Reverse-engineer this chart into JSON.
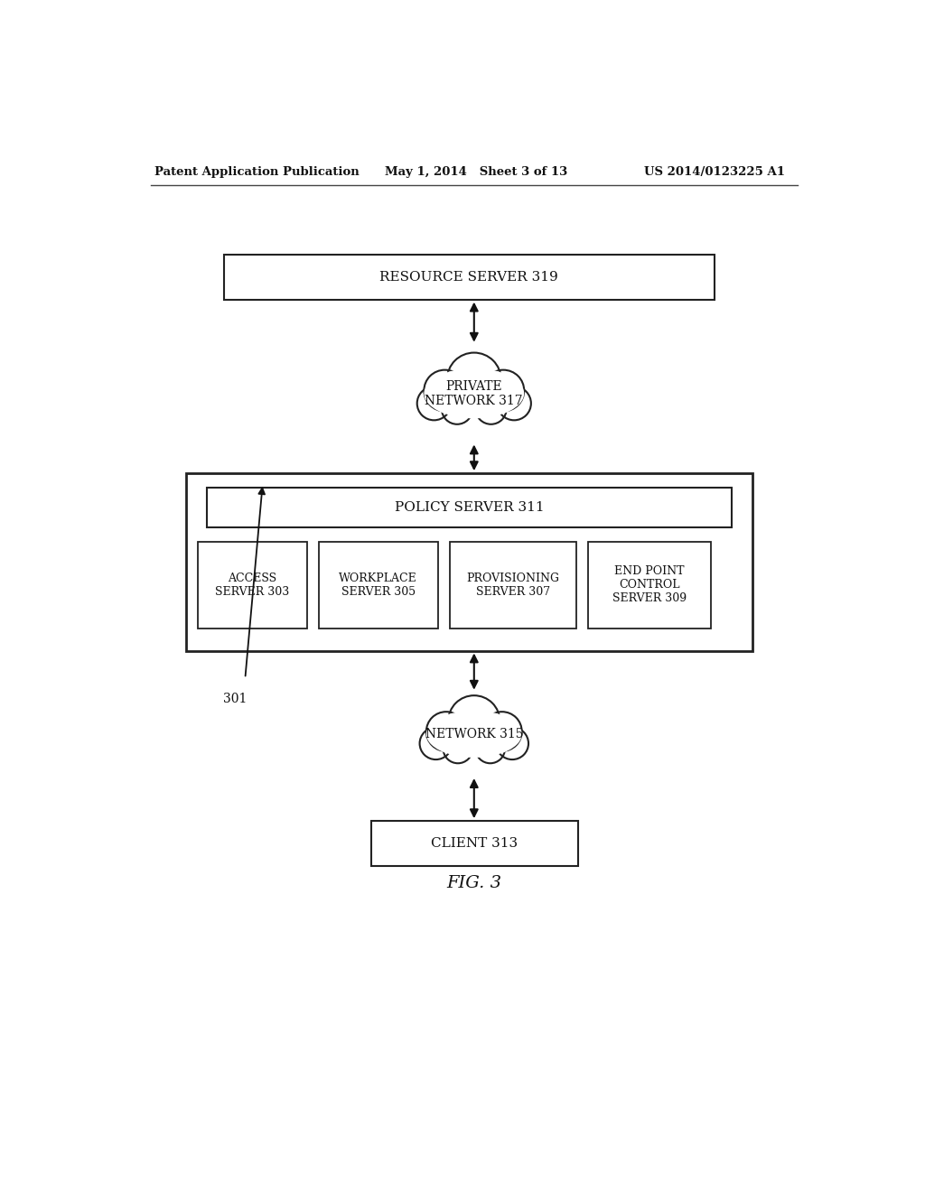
{
  "bg_color": "#ffffff",
  "header_left": "Patent Application Publication",
  "header_mid": "May 1, 2014   Sheet 3 of 13",
  "header_right": "US 2014/0123225 A1",
  "fig_label": "FIG. 3",
  "resource_server_label": "RESOURCE SERVER 319",
  "private_network_label": "PRIVATE\nNETWORK 317",
  "policy_server_label": "POLICY SERVER 311",
  "access_server_label": "ACCESS\nSERVER 303",
  "workplace_server_label": "WORKPLACE\nSERVER 305",
  "provisioning_server_label": "PROVISIONING\nSERVER 307",
  "endpoint_server_label": "END POINT\nCONTROL\nSERVER 309",
  "network_label": "NETWORK 315",
  "client_label": "CLIENT 313",
  "label_301": "301"
}
